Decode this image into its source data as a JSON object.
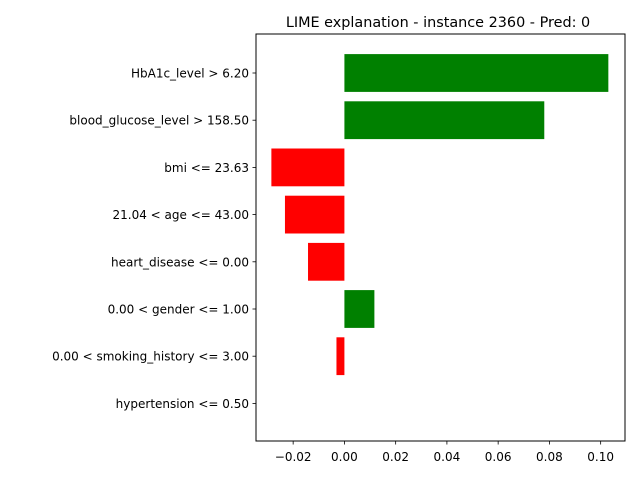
{
  "chart_data": {
    "type": "bar",
    "orientation": "horizontal",
    "title": "LIME explanation - instance 2360 - Pred: 0",
    "xlabel": "",
    "ylabel": "",
    "xlim": [
      -0.0345,
      0.1095
    ],
    "xticks": [
      -0.02,
      0.0,
      0.02,
      0.04,
      0.06,
      0.08,
      0.1
    ],
    "xtick_labels": [
      "−0.02",
      "0.00",
      "0.02",
      "0.04",
      "0.06",
      "0.08",
      "0.10"
    ],
    "categories": [
      "HbA1c_level > 6.20",
      "blood_glucose_level > 158.50",
      "bmi <= 23.63",
      "21.04 < age <= 43.00",
      "heart_disease <= 0.00",
      "0.00 < gender <= 1.00",
      "0.00 < smoking_history <= 3.00",
      "hypertension <= 0.50"
    ],
    "values": [
      0.103,
      0.078,
      -0.0285,
      -0.0232,
      -0.0142,
      0.0117,
      -0.0031,
      0.0
    ],
    "colors": {
      "positive": "#008000",
      "negative": "#ff0000"
    },
    "grid": false,
    "legend": "none"
  }
}
